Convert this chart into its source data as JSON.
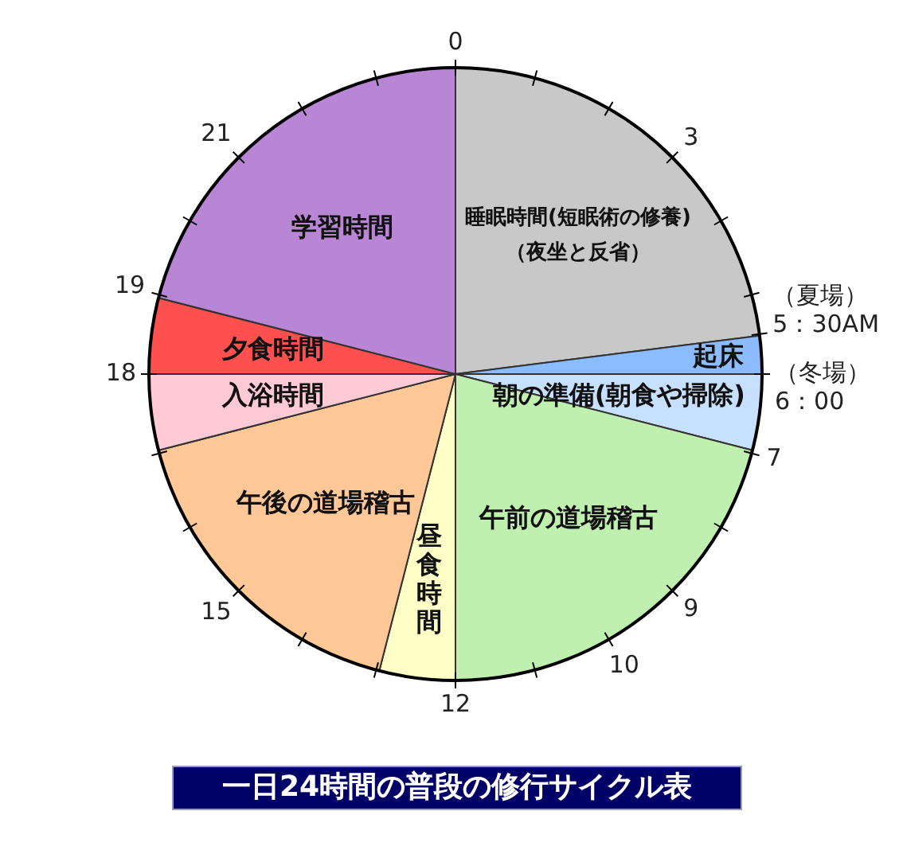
{
  "chart_data": {
    "type": "pie",
    "title": "一日24時間の普段の修行サイクル表",
    "categories": [
      "睡眠時間(短眠術の修養)\n（夜坐と反省）",
      "起床",
      "朝の準備(朝食や掃除)",
      "午前の道場稽古",
      "昼食時間",
      "午後の道場稽古",
      "入浴時間",
      "夕食時間",
      "学習時間"
    ],
    "values": [
      23,
      2,
      4,
      21,
      4,
      17,
      4,
      4,
      21
    ],
    "colors": [
      "#c8c8c8",
      "#8cbcff",
      "#c8e0ff",
      "#c0f0b0",
      "#ffffc8",
      "#ffc896",
      "#ffcad6",
      "#ff5050",
      "#b886d4"
    ],
    "annotations": [
      "0",
      "3",
      "（夏場）",
      "5：30AM",
      "（冬場）",
      "6：00",
      "7",
      "9",
      "10",
      "12",
      "15",
      "18",
      "19",
      "21"
    ]
  }
}
